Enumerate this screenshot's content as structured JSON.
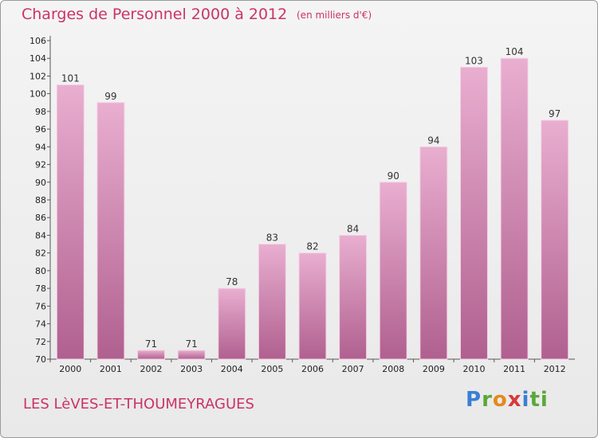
{
  "header": {
    "title": "Charges de Personnel 2000 à 2012",
    "subtitle": "(en milliers d'€)"
  },
  "footer": {
    "commune": "LES LèVES-ET-THOUMEYRAGUES",
    "logo_letters": [
      "P",
      "r",
      "o",
      "x",
      "i",
      "ti"
    ]
  },
  "colors": {
    "title": "#cc3366",
    "bar_light": "#e9aed0",
    "bar_dark": "#b0608f",
    "bar_edge": "#f5d3e6"
  },
  "chart_data": {
    "type": "bar",
    "title": "Charges de Personnel 2000 à 2012",
    "subtitle": "(en milliers d'€)",
    "categories": [
      "2000",
      "2001",
      "2002",
      "2003",
      "2004",
      "2005",
      "2006",
      "2007",
      "2008",
      "2009",
      "2010",
      "2011",
      "2012"
    ],
    "values": [
      101,
      99,
      71,
      71,
      78,
      83,
      82,
      84,
      90,
      94,
      103,
      104,
      97
    ],
    "ylim": [
      70,
      106
    ],
    "yticks": [
      70,
      72,
      74,
      76,
      78,
      80,
      82,
      84,
      86,
      88,
      90,
      92,
      94,
      96,
      98,
      100,
      102,
      104,
      106
    ],
    "grid": false,
    "data_labels": true
  }
}
